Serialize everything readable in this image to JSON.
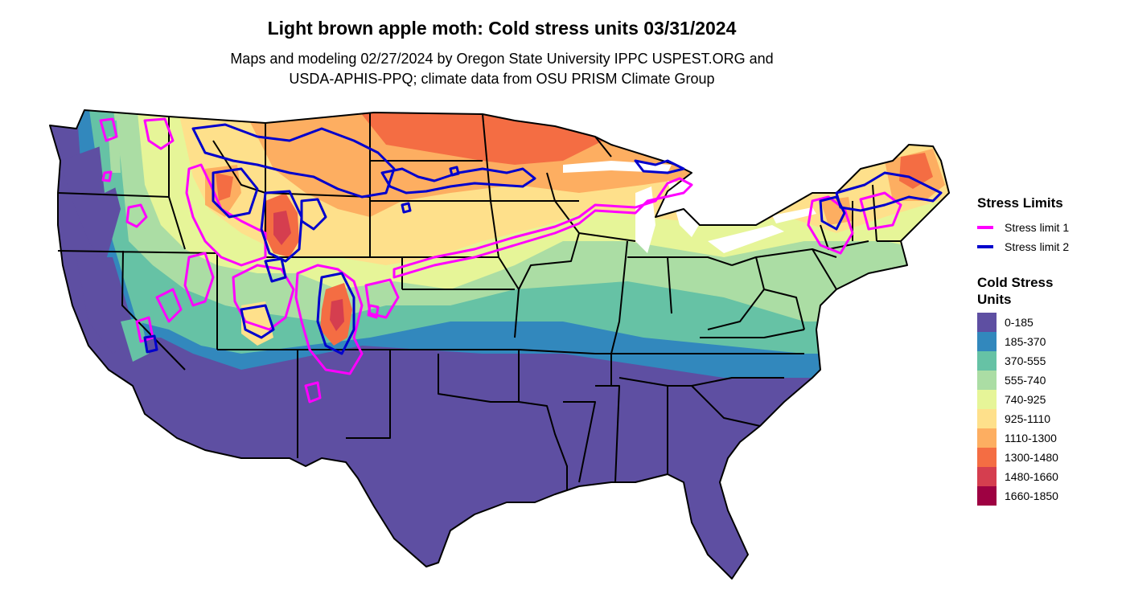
{
  "title": "Light brown apple moth: Cold stress units 03/31/2024",
  "subtitle_line1": "Maps and modeling 02/27/2024 by Oregon State University IPPC USPEST.ORG and",
  "subtitle_line2": "USDA-APHIS-PPQ; climate data from OSU PRISM Climate Group",
  "legend": {
    "stress_limits": {
      "title": "Stress Limits",
      "items": [
        {
          "label": "Stress limit 1",
          "color": "#ff00ff"
        },
        {
          "label": "Stress limit 2",
          "color": "#0000cc"
        }
      ]
    },
    "cold_stress": {
      "title": "Cold Stress Units",
      "bins": [
        {
          "label": "0-185",
          "color": "#5e4fa2"
        },
        {
          "label": "185-370",
          "color": "#3288bd"
        },
        {
          "label": "370-555",
          "color": "#66c2a5"
        },
        {
          "label": "555-740",
          "color": "#abdda4"
        },
        {
          "label": "740-925",
          "color": "#e6f598"
        },
        {
          "label": "925-1110",
          "color": "#fee08b"
        },
        {
          "label": "1110-1300",
          "color": "#fdae61"
        },
        {
          "label": "1300-1480",
          "color": "#f46d43"
        },
        {
          "label": "1480-1660",
          "color": "#d53e4f"
        },
        {
          "label": "1660-1850",
          "color": "#9e0142"
        }
      ]
    }
  }
}
